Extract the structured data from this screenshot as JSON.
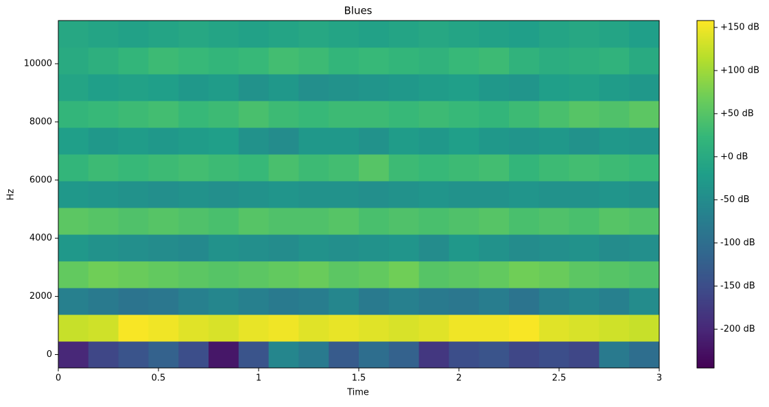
{
  "chart_data": {
    "type": "heatmap",
    "title": "Blues",
    "xlabel": "Time",
    "ylabel": "Hz",
    "x": [
      0.075,
      0.225,
      0.375,
      0.525,
      0.675,
      0.825,
      0.975,
      1.125,
      1.275,
      1.425,
      1.575,
      1.725,
      1.875,
      2.025,
      2.175,
      2.325,
      2.475,
      2.625,
      2.775,
      2.925
    ],
    "y": [
      0,
      918.75,
      1837.5,
      2756.25,
      3675,
      4593.75,
      5512.5,
      6431.25,
      7350,
      8268.75,
      9187.5,
      10106.25,
      11025
    ],
    "z": [
      [
        -200,
        -160,
        -140,
        -120,
        -150,
        -220,
        -140,
        -60,
        -80,
        -130,
        -100,
        -120,
        -180,
        -150,
        -140,
        -160,
        -150,
        -160,
        -80,
        -100
      ],
      [
        125,
        130,
        155,
        150,
        140,
        135,
        145,
        150,
        140,
        145,
        140,
        135,
        140,
        150,
        150,
        155,
        140,
        135,
        130,
        125
      ],
      [
        -70,
        -80,
        -90,
        -85,
        -70,
        -60,
        -70,
        -80,
        -75,
        -60,
        -80,
        -70,
        -80,
        -85,
        -75,
        -90,
        -70,
        -60,
        -70,
        -50
      ],
      [
        60,
        70,
        65,
        60,
        55,
        50,
        55,
        60,
        65,
        55,
        60,
        70,
        50,
        55,
        60,
        70,
        65,
        55,
        50,
        45
      ],
      [
        -30,
        -40,
        -45,
        -50,
        -55,
        -40,
        -45,
        -50,
        -40,
        -45,
        -40,
        -35,
        -50,
        -30,
        -40,
        -50,
        -45,
        -40,
        -50,
        -45
      ],
      [
        55,
        50,
        45,
        50,
        45,
        40,
        50,
        45,
        45,
        50,
        40,
        45,
        40,
        45,
        50,
        40,
        45,
        40,
        50,
        45
      ],
      [
        -30,
        -35,
        -40,
        -45,
        -40,
        -45,
        -40,
        -35,
        -40,
        -40,
        -45,
        -40,
        -35,
        -40,
        -40,
        -35,
        -40,
        -40,
        -35,
        -40
      ],
      [
        20,
        30,
        25,
        30,
        35,
        30,
        25,
        40,
        30,
        35,
        50,
        30,
        25,
        30,
        35,
        20,
        30,
        35,
        30,
        25
      ],
      [
        -20,
        -30,
        -25,
        -30,
        -25,
        -20,
        -40,
        -50,
        -30,
        -30,
        -40,
        -25,
        -30,
        -20,
        -30,
        -35,
        -30,
        -40,
        -30,
        -35
      ],
      [
        20,
        25,
        30,
        35,
        25,
        30,
        40,
        30,
        25,
        30,
        30,
        25,
        30,
        25,
        20,
        30,
        40,
        50,
        45,
        55
      ],
      [
        -10,
        -20,
        -15,
        -20,
        -30,
        -25,
        -40,
        -30,
        -45,
        -40,
        -35,
        -30,
        -25,
        -20,
        -30,
        -35,
        -20,
        -15,
        -25,
        -30
      ],
      [
        0,
        10,
        20,
        30,
        25,
        20,
        25,
        35,
        30,
        20,
        25,
        20,
        15,
        25,
        30,
        15,
        5,
        10,
        15,
        0
      ],
      [
        -5,
        -10,
        -15,
        -10,
        -5,
        -10,
        -15,
        -10,
        -5,
        -10,
        -15,
        -10,
        -5,
        -10,
        -15,
        -20,
        -10,
        -5,
        -10,
        -20
      ]
    ],
    "colormap": "viridis",
    "xlim": [
      0,
      3
    ],
    "xticks": [
      0,
      0.5,
      1,
      1.5,
      2,
      2.5,
      3
    ],
    "ylim": [
      -459.375,
      11484.375
    ],
    "yticks": [
      0,
      2000,
      4000,
      6000,
      8000,
      10000
    ],
    "clim": [
      -245,
      158
    ],
    "cticks": [
      {
        "value": -200,
        "label": "-200 dB"
      },
      {
        "value": -150,
        "label": "-150 dB"
      },
      {
        "value": -100,
        "label": "-100 dB"
      },
      {
        "value": -50,
        "label": "-50 dB"
      },
      {
        "value": 0,
        "label": "+0 dB"
      },
      {
        "value": 50,
        "label": "+50 dB"
      },
      {
        "value": 100,
        "label": "+100 dB"
      },
      {
        "value": 150,
        "label": "+150 dB"
      }
    ]
  }
}
